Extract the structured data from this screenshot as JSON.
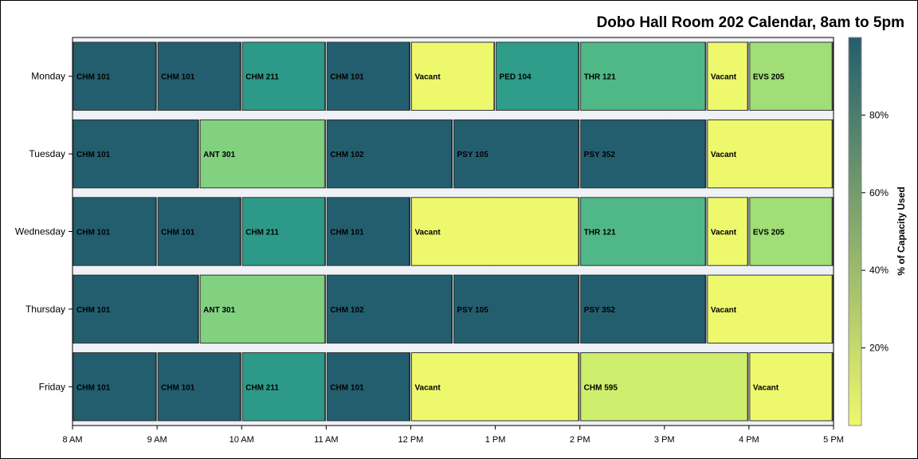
{
  "chart_data": {
    "type": "gantt",
    "title": "Dobo Hall Room 202 Calendar, 8am to 5pm",
    "x_ticks": [
      {
        "hour": 8,
        "label": "8 AM"
      },
      {
        "hour": 9,
        "label": "9 AM"
      },
      {
        "hour": 10,
        "label": "10 AM"
      },
      {
        "hour": 11,
        "label": "11 AM"
      },
      {
        "hour": 12,
        "label": "12 PM"
      },
      {
        "hour": 13,
        "label": "1 PM"
      },
      {
        "hour": 14,
        "label": "2 PM"
      },
      {
        "hour": 15,
        "label": "3 PM"
      },
      {
        "hour": 16,
        "label": "4 PM"
      },
      {
        "hour": 17,
        "label": "5 PM"
      }
    ],
    "xlim": [
      8,
      17
    ],
    "grid": true,
    "colorbar": {
      "title": "% of Capacity Used",
      "range": [
        0,
        100
      ],
      "ticks": [
        {
          "value": 20,
          "label": "20%"
        },
        {
          "value": 40,
          "label": "40%"
        },
        {
          "value": 60,
          "label": "60%"
        },
        {
          "value": 80,
          "label": "80%"
        }
      ],
      "colors": [
        "#eef86d",
        "#b9e86e",
        "#88d480",
        "#50b887",
        "#2e9c89",
        "#247a7d",
        "#235e6e"
      ]
    },
    "days": [
      {
        "day": "Monday",
        "bookings": [
          {
            "label": "CHM 101",
            "start": 8,
            "end": 9,
            "capacity": 100
          },
          {
            "label": "CHM 101",
            "start": 9,
            "end": 10,
            "capacity": 100
          },
          {
            "label": "CHM 211",
            "start": 10,
            "end": 11,
            "capacity": 68
          },
          {
            "label": "CHM 101",
            "start": 11,
            "end": 12,
            "capacity": 100
          },
          {
            "label": "Vacant",
            "start": 12,
            "end": 13,
            "capacity": 0
          },
          {
            "label": "PED 104",
            "start": 13,
            "end": 14,
            "capacity": 66
          },
          {
            "label": "THR 121",
            "start": 14,
            "end": 15.5,
            "capacity": 50
          },
          {
            "label": "Vacant",
            "start": 15.5,
            "end": 16,
            "capacity": 0
          },
          {
            "label": "EVS 205",
            "start": 16,
            "end": 17,
            "capacity": 25
          }
        ]
      },
      {
        "day": "Tuesday",
        "bookings": [
          {
            "label": "CHM 101",
            "start": 8,
            "end": 9.5,
            "capacity": 100
          },
          {
            "label": "ANT 301",
            "start": 9.5,
            "end": 11,
            "capacity": 35
          },
          {
            "label": "CHM 102",
            "start": 11,
            "end": 12.5,
            "capacity": 100
          },
          {
            "label": "PSY 105",
            "start": 12.5,
            "end": 14,
            "capacity": 100
          },
          {
            "label": "PSY 352",
            "start": 14,
            "end": 15.5,
            "capacity": 100
          },
          {
            "label": "Vacant",
            "start": 15.5,
            "end": 17,
            "capacity": 0
          }
        ]
      },
      {
        "day": "Wednesday",
        "bookings": [
          {
            "label": "CHM 101",
            "start": 8,
            "end": 9,
            "capacity": 100
          },
          {
            "label": "CHM 101",
            "start": 9,
            "end": 10,
            "capacity": 100
          },
          {
            "label": "CHM 211",
            "start": 10,
            "end": 11,
            "capacity": 68
          },
          {
            "label": "CHM 101",
            "start": 11,
            "end": 12,
            "capacity": 100
          },
          {
            "label": "Vacant",
            "start": 12,
            "end": 14,
            "capacity": 0
          },
          {
            "label": "THR 121",
            "start": 14,
            "end": 15.5,
            "capacity": 50
          },
          {
            "label": "Vacant",
            "start": 15.5,
            "end": 16,
            "capacity": 0
          },
          {
            "label": "EVS 205",
            "start": 16,
            "end": 17,
            "capacity": 25
          }
        ]
      },
      {
        "day": "Thursday",
        "bookings": [
          {
            "label": "CHM 101",
            "start": 8,
            "end": 9.5,
            "capacity": 100
          },
          {
            "label": "ANT 301",
            "start": 9.5,
            "end": 11,
            "capacity": 35
          },
          {
            "label": "CHM 102",
            "start": 11,
            "end": 12.5,
            "capacity": 100
          },
          {
            "label": "PSY 105",
            "start": 12.5,
            "end": 14,
            "capacity": 100
          },
          {
            "label": "PSY 352",
            "start": 14,
            "end": 15.5,
            "capacity": 100
          },
          {
            "label": "Vacant",
            "start": 15.5,
            "end": 17,
            "capacity": 0
          }
        ]
      },
      {
        "day": "Friday",
        "bookings": [
          {
            "label": "CHM 101",
            "start": 8,
            "end": 9,
            "capacity": 100
          },
          {
            "label": "CHM 101",
            "start": 9,
            "end": 10,
            "capacity": 100
          },
          {
            "label": "CHM 211",
            "start": 10,
            "end": 11,
            "capacity": 68
          },
          {
            "label": "CHM 101",
            "start": 11,
            "end": 12,
            "capacity": 100
          },
          {
            "label": "Vacant",
            "start": 12,
            "end": 14,
            "capacity": 0
          },
          {
            "label": "CHM 595",
            "start": 14,
            "end": 16,
            "capacity": 10
          },
          {
            "label": "Vacant",
            "start": 16,
            "end": 17,
            "capacity": 0
          }
        ]
      }
    ]
  }
}
